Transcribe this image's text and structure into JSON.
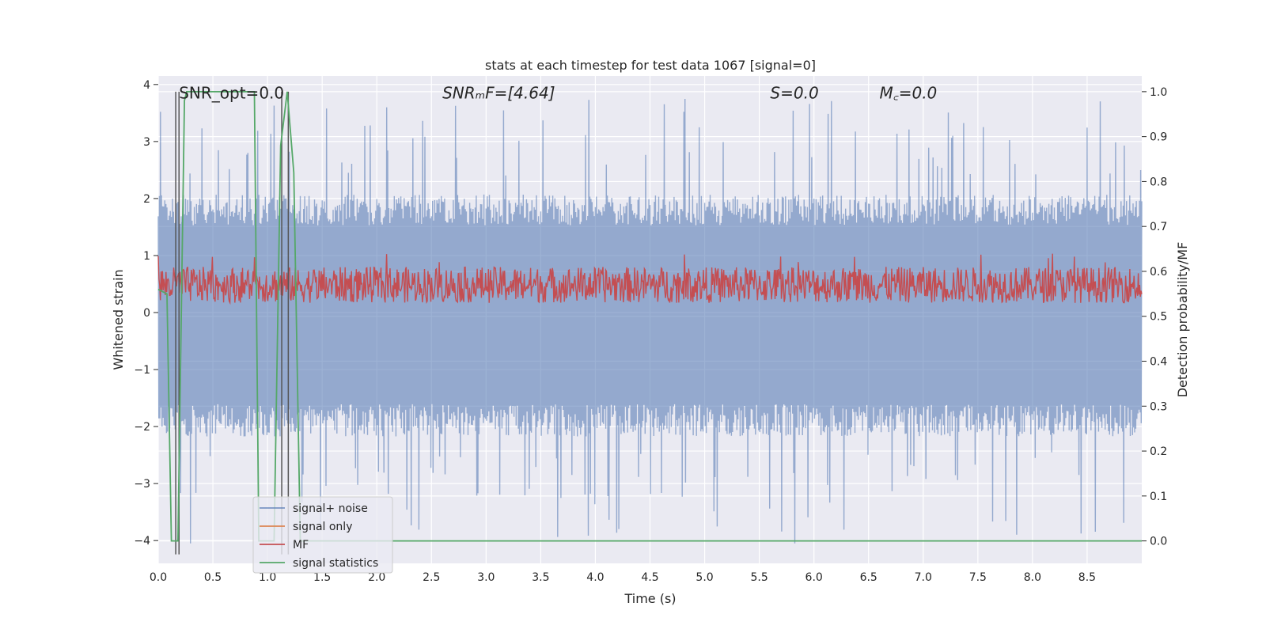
{
  "chart_data": {
    "type": "line",
    "title": "stats at each timestep for test data 1067 [signal=0]",
    "xlabel": "Time (s)",
    "ylabel_left": "Whitened strain",
    "ylabel_right": "Detection probability/MF",
    "xlim": [
      0.0,
      9.0
    ],
    "ylim_left": [
      -4.4,
      4.15
    ],
    "ylim_right": [
      -0.05,
      1.035
    ],
    "x_ticks": [
      "0.0",
      "0.5",
      "1.0",
      "1.5",
      "2.0",
      "2.5",
      "3.0",
      "3.5",
      "4.0",
      "4.5",
      "5.0",
      "5.5",
      "6.0",
      "6.5",
      "7.0",
      "7.5",
      "8.0",
      "8.5"
    ],
    "y_ticks_left": [
      "−4",
      "−3",
      "−2",
      "−1",
      "0",
      "1",
      "2",
      "3",
      "4"
    ],
    "y_ticks_right": [
      "0.0",
      "0.1",
      "0.2",
      "0.3",
      "0.4",
      "0.5",
      "0.6",
      "0.7",
      "0.8",
      "0.9",
      "1.0"
    ],
    "grid": true,
    "legend_position": "lower-left",
    "annotations": [
      {
        "text": "SNR_opt=0.0",
        "x": 0.19,
        "y": 3.85
      },
      {
        "text": "SNRₘF=[4.64]",
        "x": 2.6,
        "y": 3.85
      },
      {
        "text": "S=0.0",
        "x": 5.6,
        "y": 3.85
      },
      {
        "text": "M꜀=0.0",
        "x": 6.6,
        "y": 3.85
      }
    ],
    "series": [
      {
        "name": "signal+ noise",
        "color": "#4c72b0",
        "axis": "left",
        "description_values": {
          "band_abs_typical": 1.8,
          "peak_max": 3.75,
          "peak_min": -4.05,
          "duration_s": 9.0
        }
      },
      {
        "name": "signal only",
        "color": "#dd8452",
        "axis": "left",
        "values": []
      },
      {
        "name": "MF",
        "color": "#c44e52",
        "axis": "right",
        "description_values": {
          "mean": 0.56,
          "band_low": 0.53,
          "band_high": 0.61,
          "peak": 0.64
        }
      },
      {
        "name": "signal statistics",
        "color": "#55a868",
        "axis": "right",
        "x": [
          0.0,
          0.08,
          0.12,
          0.18,
          0.24,
          0.26,
          0.88,
          0.92,
          1.06,
          1.12,
          1.18,
          1.24,
          1.3,
          1.34,
          1.5,
          1.6,
          9.0
        ],
        "y": [
          0.56,
          0.55,
          0.0,
          0.0,
          0.98,
          1.0,
          1.0,
          0.0,
          0.0,
          0.88,
          1.0,
          0.82,
          0.0,
          0.0,
          0.0,
          0.0,
          0.0
        ]
      }
    ],
    "vertical_lines": [
      0.16,
      0.19,
      1.13,
      1.19
    ]
  }
}
